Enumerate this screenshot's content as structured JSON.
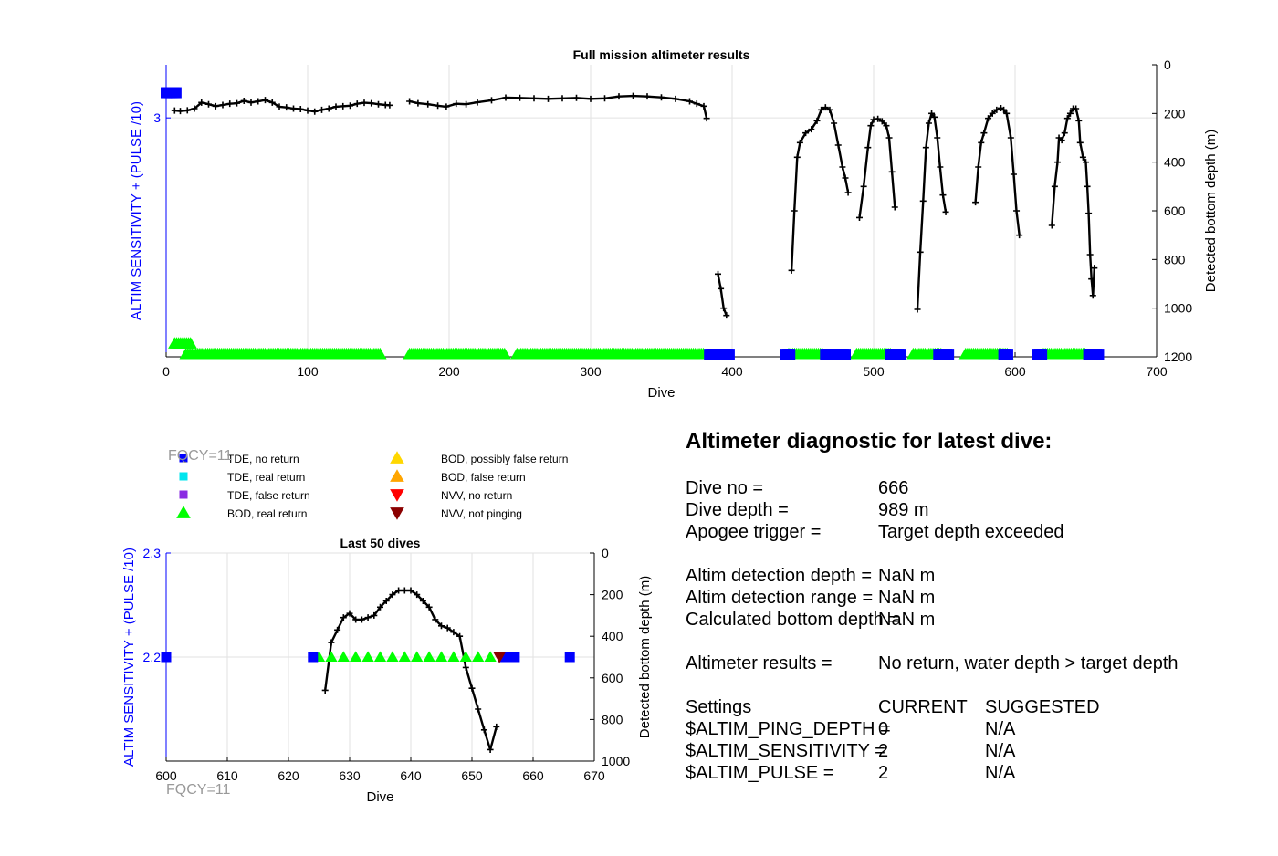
{
  "chart_data": [
    {
      "type": "line",
      "title": "Full mission altimeter results",
      "xlabel": "Dive",
      "ylabel_left": "ALTIM SENSITIVITY + (PULSE /10)",
      "ylabel_right": "Detected bottom depth (m)",
      "xlim": [
        0,
        700
      ],
      "xticks": [
        0,
        100,
        200,
        300,
        400,
        500,
        600,
        700
      ],
      "ylim_left": [
        1.2,
        3.4
      ],
      "yticks_left": [
        3
      ],
      "ylim_right_reversed": [
        0,
        1200
      ],
      "yticks_right": [
        0,
        200,
        400,
        600,
        800,
        1000,
        1200
      ],
      "grid": true,
      "series": [
        {
          "name": "Detected bottom depth",
          "axis": "right",
          "color": "#000000",
          "segments": [
            [
              [
                6,
                188
              ],
              [
                10,
                190
              ],
              [
                15,
                187
              ],
              [
                20,
                180
              ],
              [
                25,
                155
              ],
              [
                30,
                162
              ],
              [
                35,
                170
              ],
              [
                40,
                165
              ],
              [
                45,
                160
              ],
              [
                50,
                158
              ],
              [
                55,
                148
              ],
              [
                60,
                155
              ],
              [
                65,
                150
              ],
              [
                70,
                145
              ],
              [
                75,
                155
              ],
              [
                80,
                172
              ],
              [
                85,
                175
              ],
              [
                90,
                180
              ],
              [
                95,
                182
              ],
              [
                100,
                188
              ],
              [
                105,
                192
              ],
              [
                110,
                185
              ],
              [
                115,
                180
              ],
              [
                120,
                172
              ],
              [
                125,
                170
              ],
              [
                130,
                168
              ],
              [
                135,
                160
              ],
              [
                140,
                156
              ],
              [
                145,
                158
              ],
              [
                150,
                162
              ],
              [
                155,
                165
              ],
              [
                158,
                166
              ]
            ],
            [
              [
                172,
                150
              ],
              [
                178,
                158
              ],
              [
                185,
                162
              ],
              [
                192,
                168
              ],
              [
                198,
                172
              ],
              [
                205,
                160
              ],
              [
                212,
                162
              ],
              [
                220,
                154
              ],
              [
                230,
                146
              ],
              [
                240,
                135
              ],
              [
                250,
                136
              ],
              [
                260,
                138
              ],
              [
                270,
                140
              ],
              [
                280,
                138
              ],
              [
                290,
                136
              ],
              [
                300,
                140
              ],
              [
                310,
                138
              ],
              [
                320,
                130
              ],
              [
                330,
                128
              ],
              [
                340,
                130
              ],
              [
                350,
                134
              ],
              [
                360,
                140
              ],
              [
                370,
                150
              ],
              [
                375,
                160
              ],
              [
                380,
                170
              ],
              [
                382,
                220
              ]
            ],
            [
              [
                390,
                860
              ],
              [
                392,
                920
              ],
              [
                394,
                1000
              ],
              [
                396,
                1030
              ]
            ],
            [
              [
                442,
                845
              ],
              [
                444,
                600
              ],
              [
                446,
                380
              ],
              [
                448,
                320
              ],
              [
                452,
                280
              ],
              [
                456,
                265
              ],
              [
                460,
                230
              ],
              [
                463,
                185
              ],
              [
                466,
                175
              ],
              [
                469,
                185
              ],
              [
                472,
                240
              ],
              [
                475,
                330
              ],
              [
                478,
                420
              ],
              [
                480,
                465
              ],
              [
                482,
                525
              ]
            ],
            [
              [
                490,
                628
              ],
              [
                493,
                500
              ],
              [
                496,
                340
              ],
              [
                498,
                250
              ],
              [
                500,
                225
              ],
              [
                503,
                222
              ],
              [
                506,
                232
              ],
              [
                509,
                250
              ],
              [
                511,
                300
              ],
              [
                513,
                440
              ],
              [
                515,
                585
              ]
            ],
            [
              [
                531,
                1005
              ],
              [
                533,
                770
              ],
              [
                535,
                560
              ],
              [
                537,
                340
              ],
              [
                539,
                240
              ],
              [
                541,
                200
              ],
              [
                543,
                215
              ],
              [
                545,
                300
              ],
              [
                547,
                420
              ],
              [
                549,
                535
              ],
              [
                551,
                605
              ]
            ],
            [
              [
                572,
                565
              ],
              [
                574,
                420
              ],
              [
                576,
                320
              ],
              [
                578,
                280
              ],
              [
                581,
                220
              ],
              [
                584,
                200
              ],
              [
                587,
                185
              ],
              [
                590,
                178
              ],
              [
                592,
                185
              ],
              [
                594,
                200
              ],
              [
                597,
                300
              ],
              [
                599,
                450
              ],
              [
                601,
                600
              ],
              [
                603,
                700
              ]
            ],
            [
              [
                626,
                660
              ],
              [
                628,
                500
              ],
              [
                630,
                400
              ],
              [
                631,
                300
              ],
              [
                633,
                310
              ],
              [
                635,
                280
              ],
              [
                637,
                220
              ],
              [
                639,
                200
              ],
              [
                641,
                180
              ],
              [
                643,
                180
              ],
              [
                645,
                230
              ],
              [
                646,
                320
              ],
              [
                648,
                380
              ],
              [
                650,
                400
              ],
              [
                651,
                500
              ],
              [
                652,
                610
              ],
              [
                653,
                780
              ],
              [
                654,
                880
              ],
              [
                655,
                948
              ],
              [
                656,
                835
              ]
            ]
          ]
        },
        {
          "name": "BOD, real return",
          "axis": "left",
          "marker": "triangle-up",
          "color": "#00ff00",
          "y": 1.22,
          "ranges": [
            [
              14,
              152
            ],
            [
              172,
              240
            ],
            [
              248,
              380
            ],
            [
              440,
              465
            ],
            [
              488,
              512
            ],
            [
              528,
              548
            ],
            [
              565,
              595
            ],
            [
              620,
              650
            ]
          ]
        },
        {
          "name": "BOD, real return (early)",
          "axis": "left",
          "marker": "triangle-up",
          "color": "#00ff00",
          "y": 1.3,
          "ranges": [
            [
              6,
              18
            ]
          ]
        },
        {
          "name": "TDE, no return",
          "axis": "left",
          "marker": "square",
          "color": "#0000ff",
          "y": 1.22,
          "ranges": [
            [
              384,
              398
            ],
            [
              438,
              442
            ],
            [
              466,
              480
            ],
            [
              512,
              520
            ],
            [
              546,
              554
            ],
            [
              592,
              596
            ],
            [
              616,
              620
            ],
            [
              652,
              660
            ]
          ]
        },
        {
          "name": "TDE, no return (start)",
          "axis": "left",
          "marker": "square",
          "color": "#0000ff",
          "y": 3.19,
          "ranges": [
            [
              0,
              8
            ]
          ]
        }
      ]
    },
    {
      "type": "line",
      "title": "Last 50 dives",
      "xlabel": "Dive",
      "ylabel_left": "ALTIM SENSITIVITY + (PULSE /10)",
      "ylabel_right": "Detected bottom depth (m)",
      "xlim": [
        600,
        670
      ],
      "xticks": [
        600,
        610,
        620,
        630,
        640,
        650,
        660,
        670
      ],
      "ylim_left": [
        2.1,
        2.3
      ],
      "yticks_left": [
        2.2,
        2.3
      ],
      "ylim_right_reversed": [
        0,
        1000
      ],
      "yticks_right": [
        0,
        200,
        400,
        600,
        800,
        1000
      ],
      "grid": true,
      "series": [
        {
          "name": "Detected bottom depth",
          "axis": "right",
          "color": "#000000",
          "x": [
            626,
            627,
            628,
            629,
            630,
            631,
            632,
            633,
            634,
            635,
            636,
            637,
            638,
            639,
            640,
            641,
            642,
            643,
            644,
            645,
            646,
            647,
            648,
            649,
            650,
            651,
            652,
            653,
            654
          ],
          "y": [
            660,
            430,
            370,
            310,
            290,
            320,
            320,
            310,
            300,
            260,
            230,
            200,
            180,
            180,
            180,
            200,
            230,
            260,
            320,
            350,
            360,
            380,
            400,
            550,
            650,
            750,
            850,
            945,
            835
          ]
        },
        {
          "name": "BOD, real return",
          "axis": "left",
          "marker": "triangle-up",
          "color": "#00ff00",
          "y": 2.2,
          "x": [
            625,
            627,
            629,
            631,
            633,
            635,
            637,
            639,
            641,
            643,
            645,
            647,
            649,
            651,
            653
          ]
        },
        {
          "name": "TDE, no return",
          "axis": "left",
          "marker": "square",
          "color": "#0000ff",
          "y": 2.2,
          "x": [
            600,
            624,
            655,
            656,
            657,
            666
          ]
        },
        {
          "name": "NVV, not pinging",
          "axis": "left",
          "marker": "triangle-down",
          "color": "#8b0000",
          "y": 2.2,
          "x": [
            654.5
          ]
        }
      ]
    }
  ],
  "legend": [
    {
      "label": "TDE, no return",
      "marker": "square",
      "color": "#0000ff"
    },
    {
      "label": "TDE, real return",
      "marker": "square",
      "color": "#00e5ee"
    },
    {
      "label": "TDE, false return",
      "marker": "square",
      "color": "#8a2be2"
    },
    {
      "label": "BOD, real return",
      "marker": "triangle-up",
      "color": "#00ff00"
    },
    {
      "label": "BOD, possibly false return",
      "marker": "triangle-up",
      "color": "#ffd700"
    },
    {
      "label": "BOD, false return",
      "marker": "triangle-up",
      "color": "#ffa500"
    },
    {
      "label": "NVV, no return",
      "marker": "triangle-down",
      "color": "#ff0000"
    },
    {
      "label": "NVV, not pinging",
      "marker": "triangle-down",
      "color": "#8b0000"
    }
  ],
  "fqcy_label": "FQCY=11",
  "colors": {
    "left_axis": "#0000ff",
    "grid": "#e2e2e2",
    "fqcy": "#999999"
  },
  "diagnostic": {
    "title": "Altimeter diagnostic for latest dive:",
    "dive_no_label": "Dive no =",
    "dive_no_value": "666",
    "dive_depth_label": "Dive depth =",
    "dive_depth_value": "989 m",
    "apogee_label": "Apogee trigger =",
    "apogee_value": "Target depth exceeded",
    "detection_depth_label": "Altim detection depth =",
    "detection_depth_value": "NaN m",
    "detection_range_label": "Altim detection range =",
    "detection_range_value": "NaN m",
    "bottom_depth_label": "Calculated bottom depth =",
    "bottom_depth_value": "NaN m",
    "results_label": "Altimeter results =",
    "results_value": "No return, water depth > target depth",
    "settings_label": "Settings",
    "current_header": "CURRENT",
    "suggested_header": "SUGGESTED",
    "ping_depth_label": "$ALTIM_PING_DEPTH =",
    "ping_depth_current": "0",
    "ping_depth_suggested": "N/A",
    "sensitivity_label": "$ALTIM_SENSITIVITY =",
    "sensitivity_current": "2",
    "sensitivity_suggested": "N/A",
    "pulse_label": "$ALTIM_PULSE =",
    "pulse_current": "2",
    "pulse_suggested": "N/A"
  }
}
